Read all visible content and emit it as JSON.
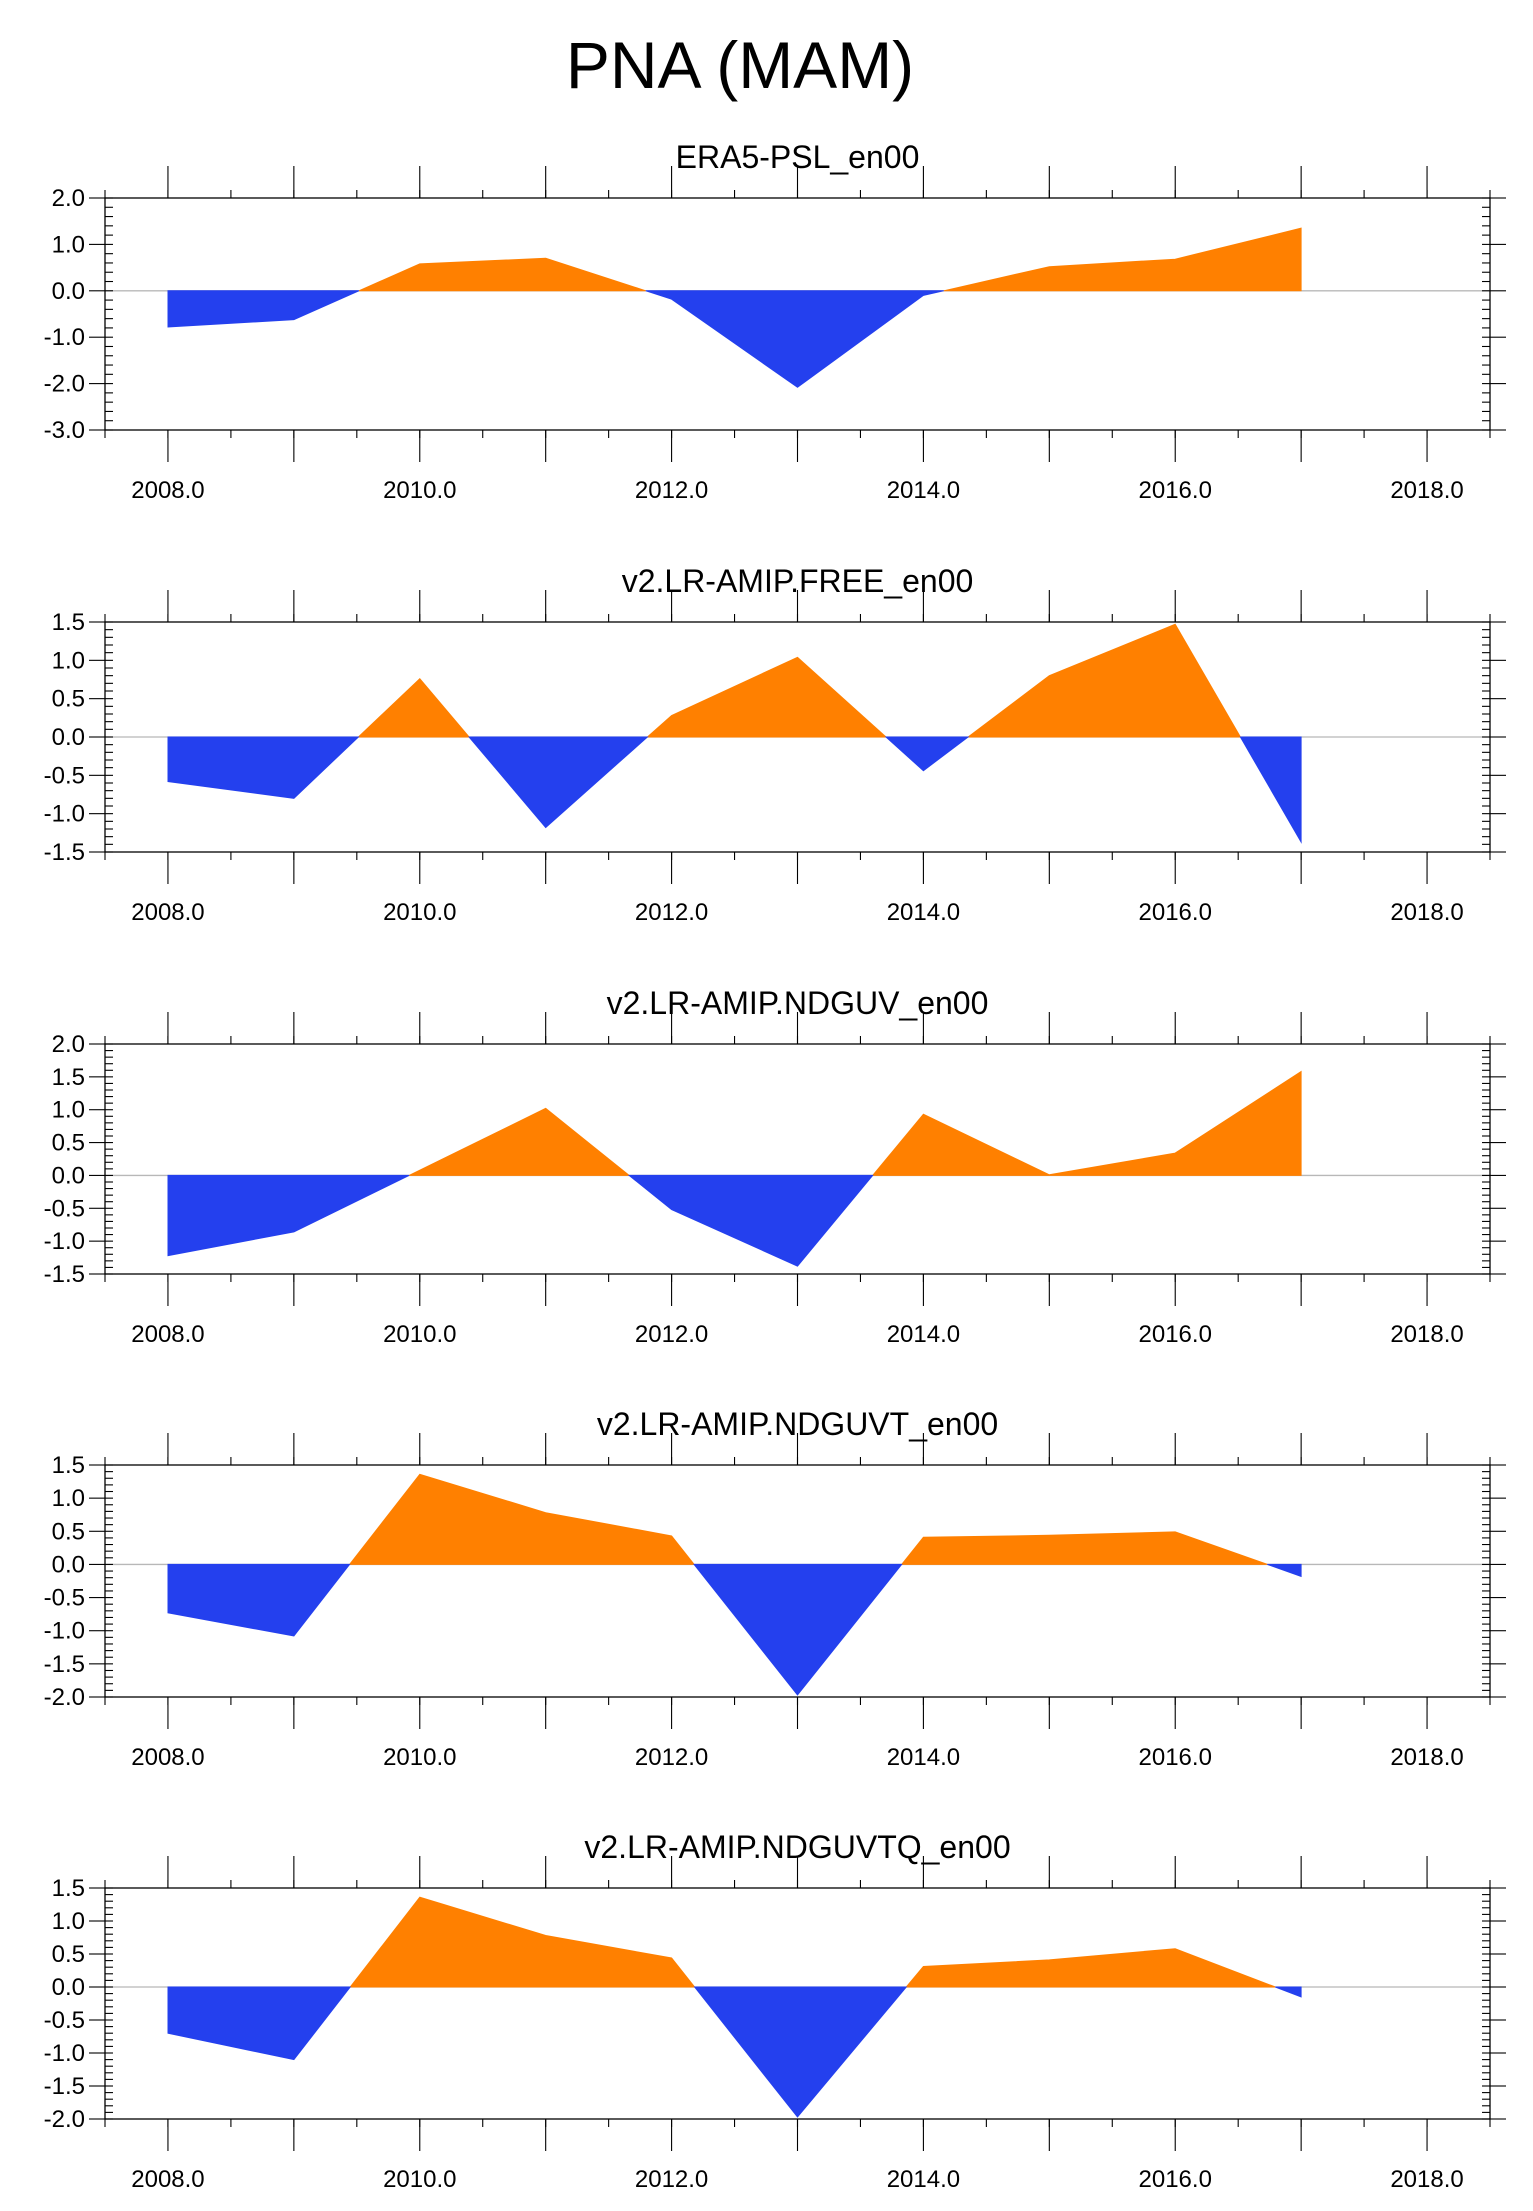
{
  "figure": {
    "title": "PNA (MAM)"
  },
  "colors": {
    "positive": "#ff8000",
    "negative": "#2440ee",
    "zero_line": "#b8b8b8",
    "frame": "#000000"
  },
  "chart_data": [
    {
      "type": "area",
      "title": "ERA5-PSL_en00",
      "x": [
        2008,
        2009,
        2010,
        2011,
        2012,
        2013,
        2014,
        2015,
        2016,
        2017
      ],
      "values": [
        -0.78,
        -0.62,
        0.58,
        0.7,
        -0.18,
        -2.08,
        -0.1,
        0.52,
        0.68,
        1.35
      ],
      "xlim": [
        2007.5,
        2018.5
      ],
      "ylim": [
        -3.0,
        2.0
      ],
      "x_ticks": [
        2008,
        2010,
        2012,
        2014,
        2016,
        2018
      ],
      "x_tick_labels": [
        "2008.0",
        "2010.0",
        "2012.0",
        "2014.0",
        "2016.0",
        "2018.0"
      ],
      "y_ticks": [
        2.0,
        1.0,
        0.0,
        -1.0,
        -2.0,
        -3.0
      ],
      "y_tick_labels": [
        "2.0",
        "1.0",
        "0.0",
        "-1.0",
        "-2.0",
        "-3.0"
      ],
      "minor_step": 0.2,
      "grid": false,
      "fill_above_zero": "orange",
      "fill_below_zero": "blue"
    },
    {
      "type": "area",
      "title": "v2.LR-AMIP.FREE_en00",
      "x": [
        2008,
        2009,
        2010,
        2011,
        2012,
        2013,
        2014,
        2015,
        2016,
        2017
      ],
      "values": [
        -0.58,
        -0.8,
        0.76,
        -1.18,
        0.28,
        1.04,
        -0.44,
        0.8,
        1.47,
        -1.37
      ],
      "xlim": [
        2007.5,
        2018.5
      ],
      "ylim": [
        -1.5,
        1.5
      ],
      "x_ticks": [
        2008,
        2010,
        2012,
        2014,
        2016,
        2018
      ],
      "x_tick_labels": [
        "2008.0",
        "2010.0",
        "2012.0",
        "2014.0",
        "2016.0",
        "2018.0"
      ],
      "y_ticks": [
        1.5,
        1.0,
        0.5,
        0.0,
        -0.5,
        -1.0,
        -1.5
      ],
      "y_tick_labels": [
        "1.5",
        "1.0",
        "0.5",
        "0.0",
        "-0.5",
        "-1.0",
        "-1.5"
      ],
      "minor_step": 0.1,
      "grid": false,
      "fill_above_zero": "orange",
      "fill_below_zero": "blue"
    },
    {
      "type": "area",
      "title": "v2.LR-AMIP.NDGUV_en00",
      "x": [
        2008,
        2009,
        2010,
        2011,
        2012,
        2013,
        2014,
        2015,
        2016,
        2017
      ],
      "values": [
        -1.22,
        -0.86,
        0.08,
        1.02,
        -0.52,
        -1.38,
        0.93,
        0.01,
        0.34,
        1.58
      ],
      "xlim": [
        2007.5,
        2018.5
      ],
      "ylim": [
        -1.5,
        2.0
      ],
      "x_ticks": [
        2008,
        2010,
        2012,
        2014,
        2016,
        2018
      ],
      "x_tick_labels": [
        "2008.0",
        "2010.0",
        "2012.0",
        "2014.0",
        "2016.0",
        "2018.0"
      ],
      "y_ticks": [
        2.0,
        1.5,
        1.0,
        0.5,
        0.0,
        -0.5,
        -1.0,
        -1.5
      ],
      "y_tick_labels": [
        "2.0",
        "1.5",
        "1.0",
        "0.5",
        "0.0",
        "-0.5",
        "-1.0",
        "-1.5"
      ],
      "minor_step": 0.1,
      "grid": false,
      "fill_above_zero": "orange",
      "fill_below_zero": "blue"
    },
    {
      "type": "area",
      "title": "v2.LR-AMIP.NDGUVT_en00",
      "x": [
        2008,
        2009,
        2010,
        2011,
        2012,
        2013,
        2014,
        2015,
        2016,
        2017
      ],
      "values": [
        -0.73,
        -1.08,
        1.36,
        0.78,
        0.43,
        -1.97,
        0.41,
        0.44,
        0.49,
        -0.18
      ],
      "xlim": [
        2007.5,
        2018.5
      ],
      "ylim": [
        -2.0,
        1.5
      ],
      "x_ticks": [
        2008,
        2010,
        2012,
        2014,
        2016,
        2018
      ],
      "x_tick_labels": [
        "2008.0",
        "2010.0",
        "2012.0",
        "2014.0",
        "2016.0",
        "2018.0"
      ],
      "y_ticks": [
        1.5,
        1.0,
        0.5,
        0.0,
        -0.5,
        -1.0,
        -1.5,
        -2.0
      ],
      "y_tick_labels": [
        "1.5",
        "1.0",
        "0.5",
        "0.0",
        "-0.5",
        "-1.0",
        "-1.5",
        "-2.0"
      ],
      "minor_step": 0.1,
      "grid": false,
      "fill_above_zero": "orange",
      "fill_below_zero": "blue"
    },
    {
      "type": "area",
      "title": "v2.LR-AMIP.NDGUVTQ_en00",
      "x": [
        2008,
        2009,
        2010,
        2011,
        2012,
        2013,
        2014,
        2015,
        2016,
        2017
      ],
      "values": [
        -0.7,
        -1.1,
        1.36,
        0.78,
        0.44,
        -1.97,
        0.31,
        0.41,
        0.58,
        -0.15
      ],
      "xlim": [
        2007.5,
        2018.5
      ],
      "ylim": [
        -2.0,
        1.5
      ],
      "x_ticks": [
        2008,
        2010,
        2012,
        2014,
        2016,
        2018
      ],
      "x_tick_labels": [
        "2008.0",
        "2010.0",
        "2012.0",
        "2014.0",
        "2016.0",
        "2018.0"
      ],
      "y_ticks": [
        1.5,
        1.0,
        0.5,
        0.0,
        -0.5,
        -1.0,
        -1.5,
        -2.0
      ],
      "y_tick_labels": [
        "1.5",
        "1.0",
        "0.5",
        "0.0",
        "-0.5",
        "-1.0",
        "-1.5",
        "-2.0"
      ],
      "minor_step": 0.1,
      "grid": false,
      "fill_above_zero": "orange",
      "fill_below_zero": "blue"
    }
  ]
}
